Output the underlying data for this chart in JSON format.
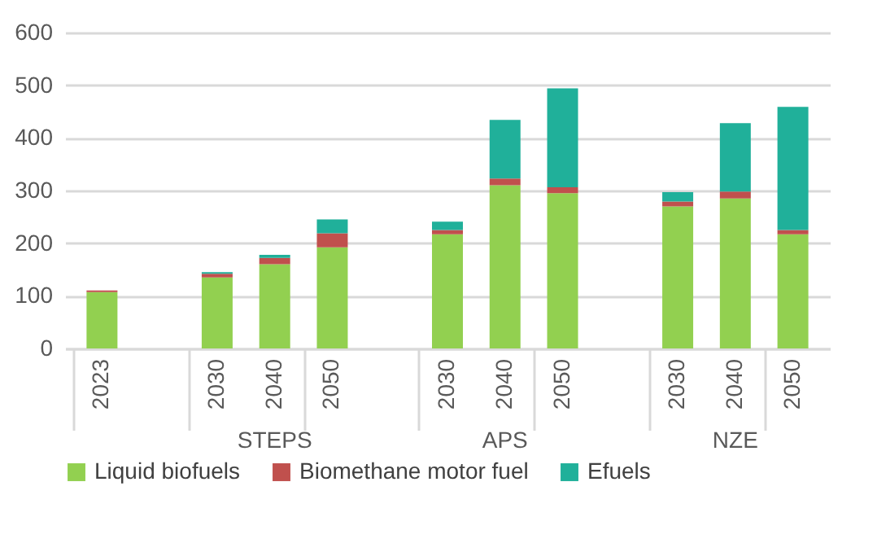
{
  "chart_data": {
    "type": "bar",
    "stacked": true,
    "categories": [
      "2023",
      null,
      "2030",
      "2040",
      "2050",
      null,
      "2030",
      "2040",
      "2050",
      null,
      "2030",
      "2040",
      "2050"
    ],
    "series": [
      {
        "name": "Liquid biofuels",
        "color": "#92d050",
        "values": [
          107,
          null,
          135,
          160,
          192,
          null,
          217,
          310,
          295,
          null,
          270,
          285,
          217
        ]
      },
      {
        "name": "Biomethane motor fuel",
        "color": "#c0504d",
        "values": [
          3,
          null,
          7,
          12,
          27,
          null,
          8,
          13,
          11,
          null,
          9,
          13,
          8
        ]
      },
      {
        "name": "Efuels",
        "color": "#20b09a",
        "values": [
          null,
          null,
          3,
          6,
          26,
          null,
          16,
          111,
          188,
          null,
          18,
          130,
          234
        ]
      }
    ],
    "annotations": [
      "STEPS",
      "APS",
      "NZE"
    ],
    "ylim": [
      0,
      600
    ],
    "yticks": [
      0,
      100,
      200,
      300,
      400,
      500,
      600
    ],
    "grid": "y",
    "legend": "bottom"
  }
}
